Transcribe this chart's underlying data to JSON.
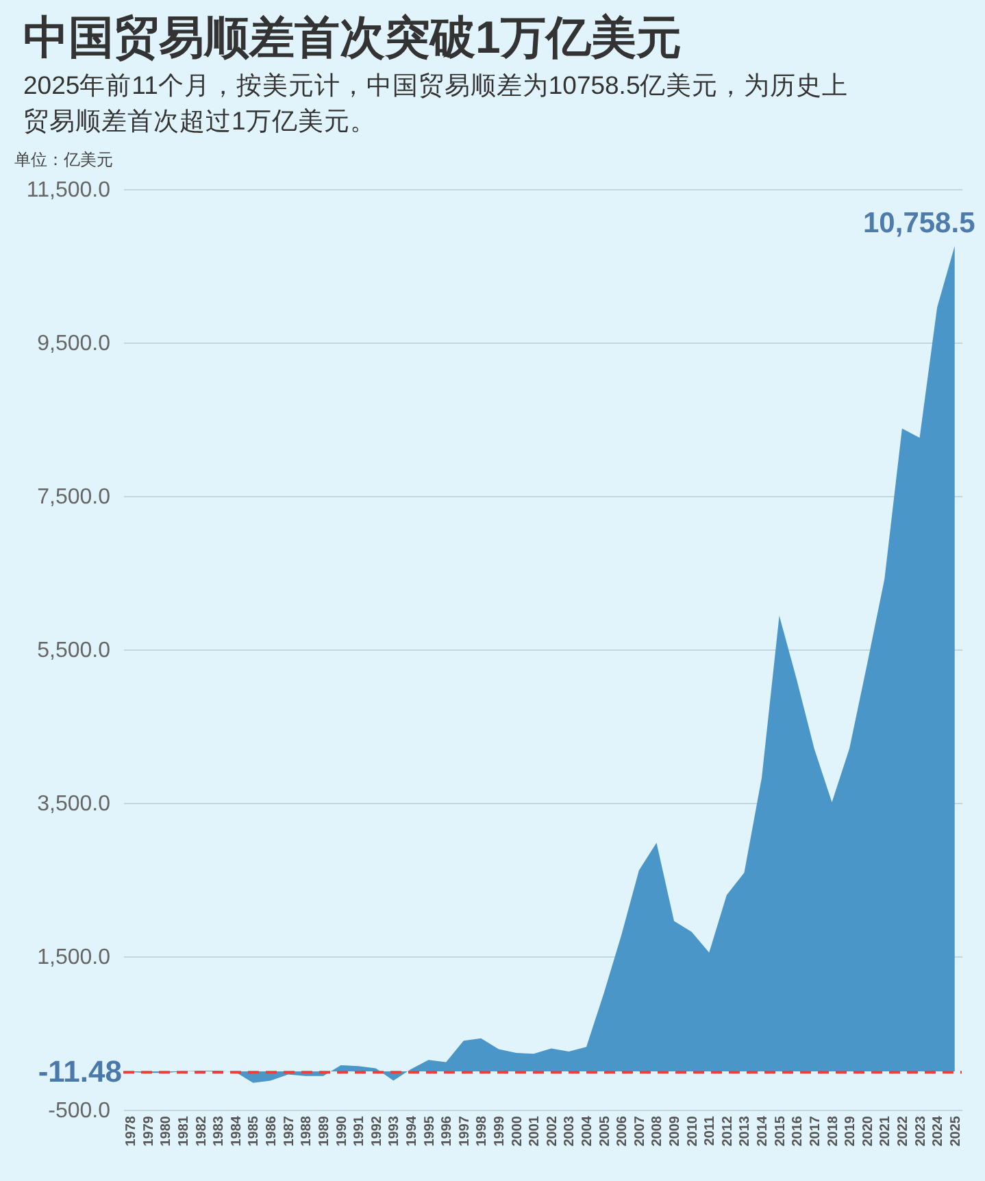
{
  "chart_data": {
    "type": "area",
    "title": "中国贸易顺差首次突破1万亿美元",
    "subtitle": "2025年前11个月，按美元计，中国贸易顺差为10758.5亿美元，为历史上贸易顺差首次超过1万亿美元。",
    "ylabel": "单位：亿美元",
    "categories": [
      "1978",
      "1979",
      "1980",
      "1981",
      "1982",
      "1983",
      "1984",
      "1985",
      "1986",
      "1987",
      "1988",
      "1989",
      "1990",
      "1991",
      "1992",
      "1993",
      "1994",
      "1995",
      "1996",
      "1997",
      "1998",
      "1999",
      "2000",
      "2001",
      "2002",
      "2003",
      "2004",
      "2005",
      "2006",
      "2007",
      "2008",
      "2009",
      "2010",
      "2011",
      "2012",
      "2013",
      "2014",
      "2015",
      "2016",
      "2017",
      "2018",
      "2019",
      "2020",
      "2021",
      "2022",
      "2023",
      "2024",
      "2025"
    ],
    "values": [
      -10,
      -20,
      -20,
      0,
      10,
      10,
      -10,
      -150,
      -120,
      -40,
      -60,
      -60,
      80,
      70,
      40,
      -120,
      30,
      150,
      120,
      400,
      430,
      290,
      240,
      230,
      300,
      260,
      320,
      1020,
      1780,
      2620,
      2980,
      1960,
      1820,
      1550,
      2300,
      2590,
      3830,
      5940,
      5100,
      4200,
      3510,
      4210,
      5300,
      6420,
      8380,
      8260,
      9960,
      10758.5
    ],
    "value_labels": [
      null,
      null,
      null,
      null,
      null,
      null,
      null,
      null,
      null,
      null,
      null,
      null,
      null,
      null,
      null,
      null,
      null,
      null,
      null,
      null,
      null,
      null,
      null,
      null,
      null,
      null,
      null,
      null,
      null,
      null,
      null,
      null,
      null,
      null,
      null,
      null,
      null,
      null,
      null,
      null,
      null,
      null,
      null,
      null,
      null,
      null,
      null,
      "10,758.5"
    ],
    "color": "#4b96c9",
    "ylim": [
      -500,
      11500
    ],
    "yticks": [
      {
        "value": -500,
        "label": "-500.0"
      },
      {
        "value": 1500,
        "label": "1,500.0"
      },
      {
        "value": 3500,
        "label": "3,500.0"
      },
      {
        "value": 5500,
        "label": "5,500.0"
      },
      {
        "value": 7500,
        "label": "7,500.0"
      },
      {
        "value": 9500,
        "label": "9,500.0"
      },
      {
        "value": 11500,
        "label": "11,500.0"
      }
    ],
    "grid": "y",
    "ref_lines": [
      {
        "axis": "y",
        "value": -11.48,
        "label": "-11.48",
        "color": "#e8413c",
        "line_style": "dashed"
      }
    ]
  }
}
